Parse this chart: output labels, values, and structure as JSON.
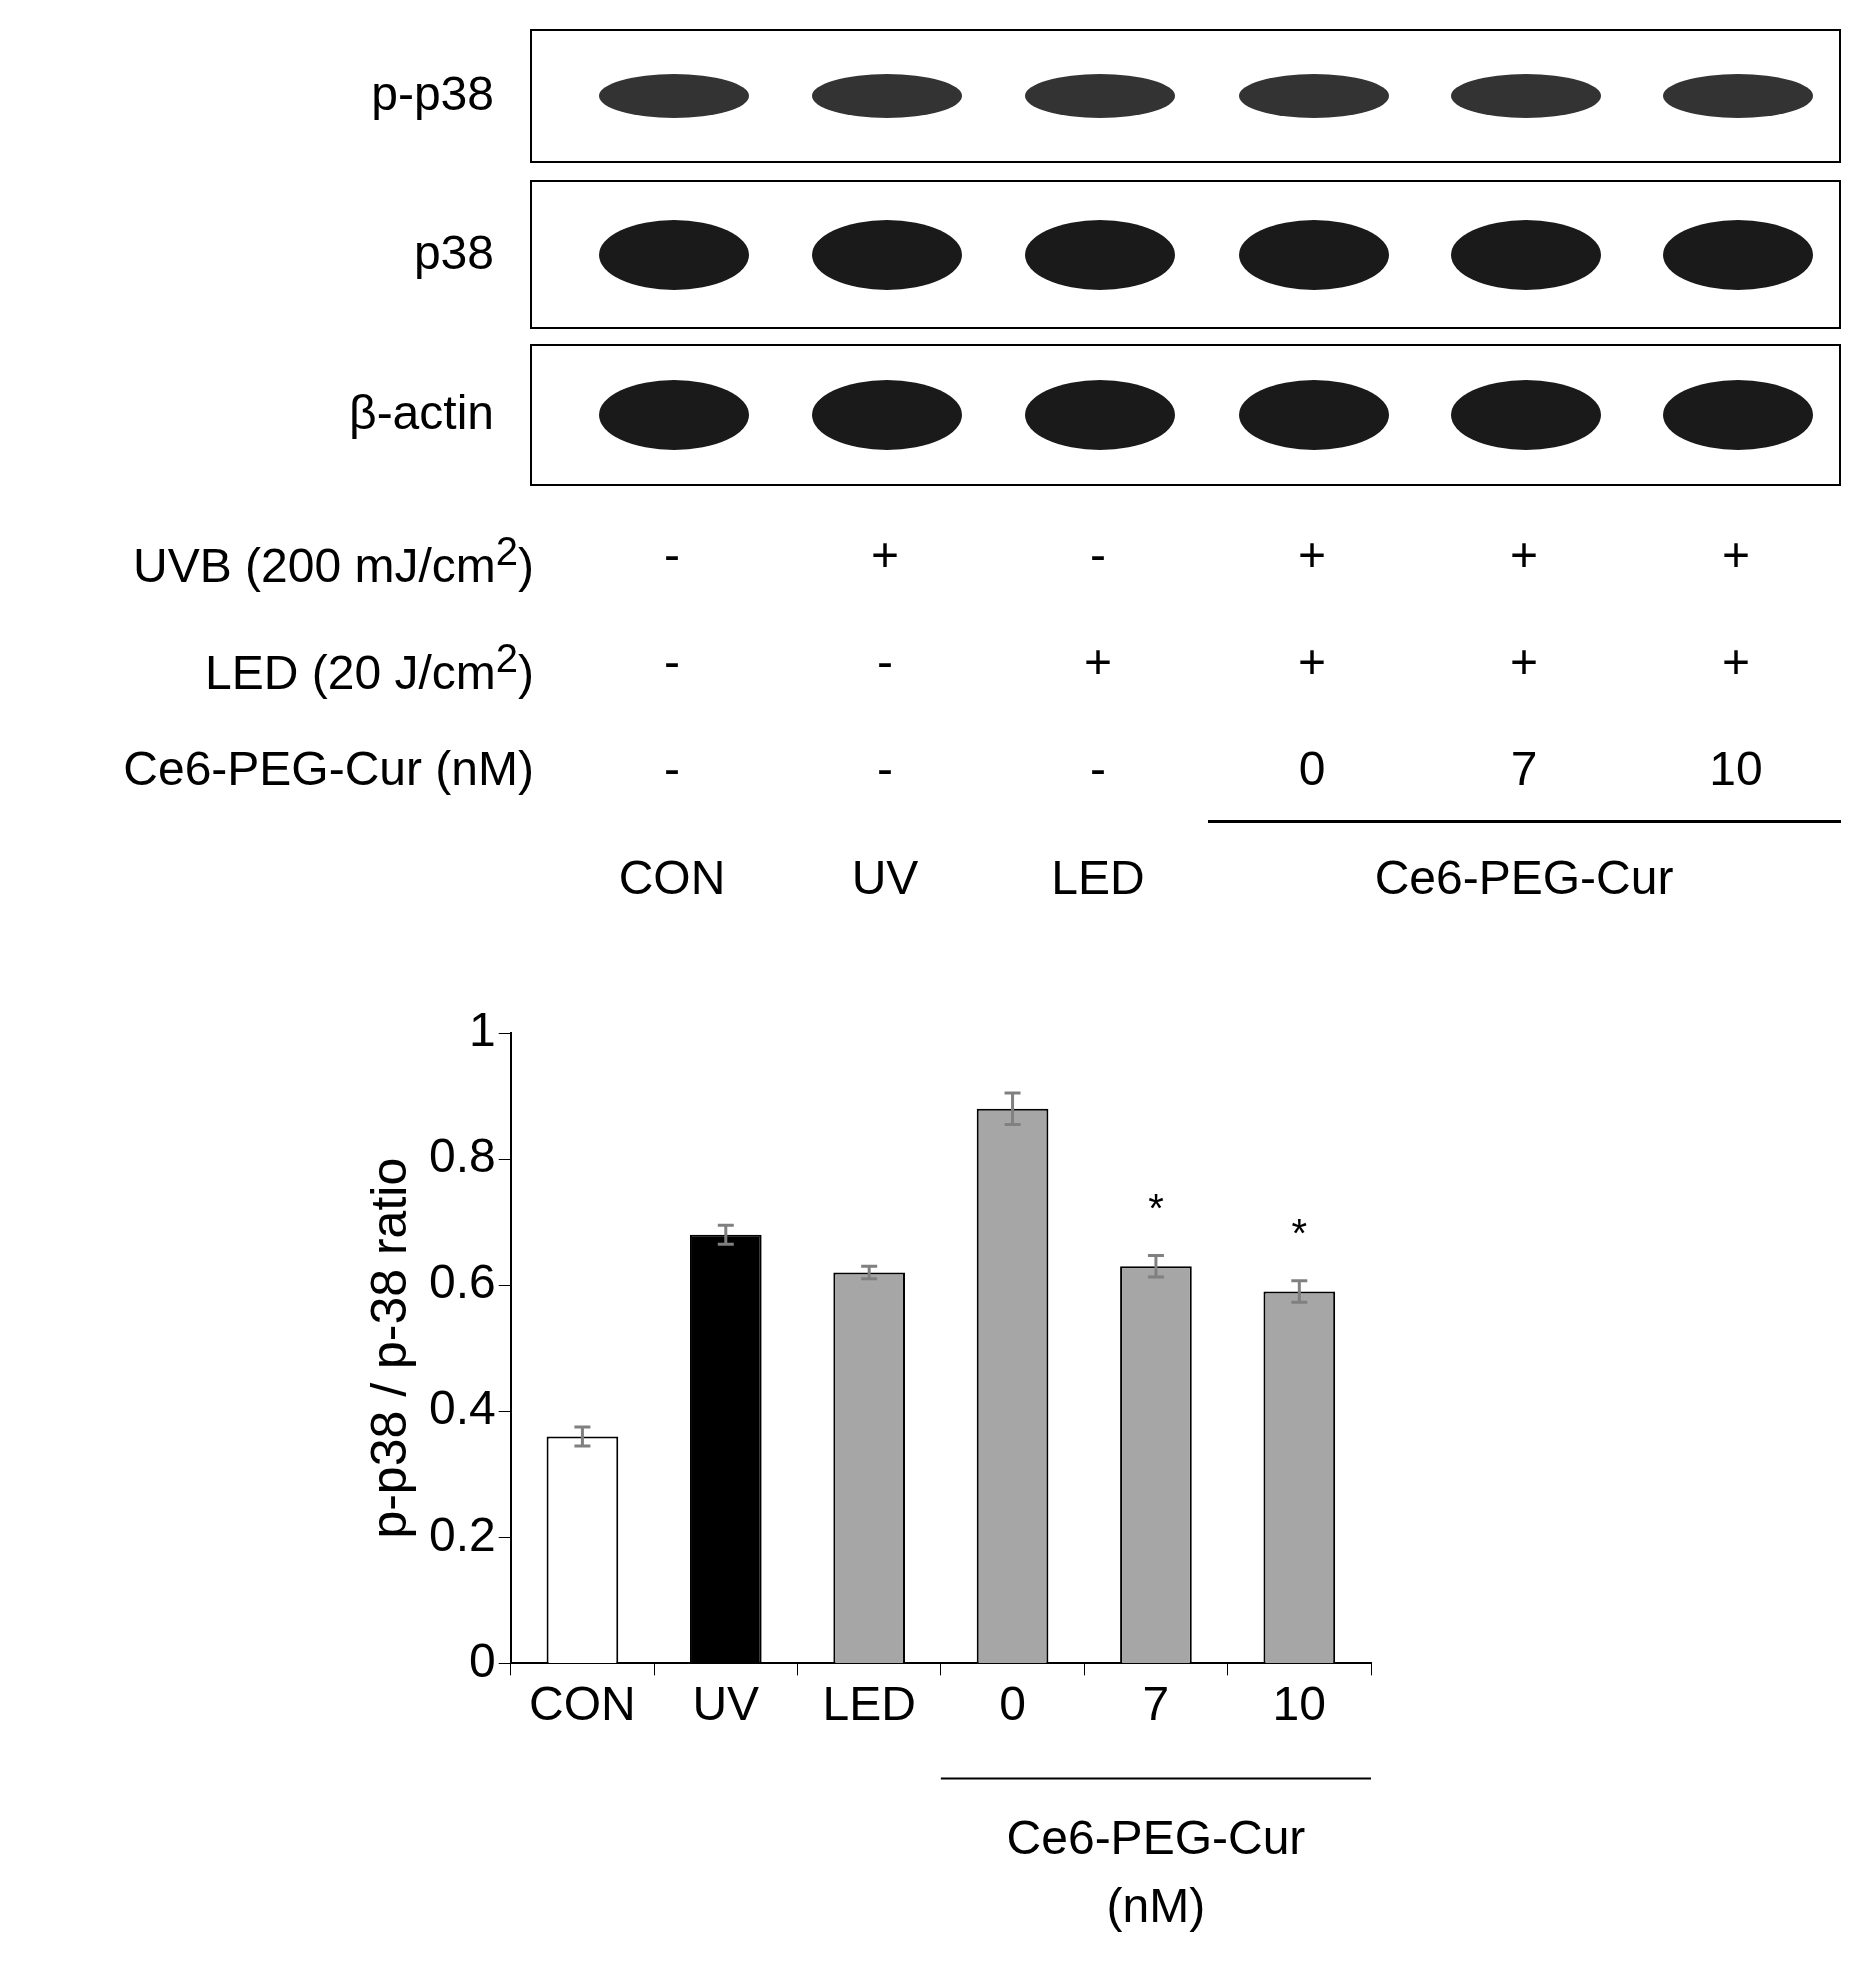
{
  "chart_data": {
    "type": "bar",
    "ylabel": "p-p38 / p-38 ratio",
    "xlabel": "Ce6-PEG-Cur (nM)",
    "categories": [
      "CON",
      "UV",
      "LED",
      "0",
      "7",
      "10"
    ],
    "values": [
      0.36,
      0.68,
      0.62,
      0.88,
      0.63,
      0.59
    ],
    "colors": [
      "#ffffff",
      "#000000",
      "#a6a6a6",
      "#a6a6a6",
      "#a6a6a6",
      "#a6a6a6"
    ],
    "errors": [
      0.015,
      0.015,
      0.01,
      0.025,
      0.017,
      0.017
    ],
    "ylim": [
      0,
      1
    ],
    "yticks": [
      0,
      0.2,
      0.4,
      0.6,
      0.8,
      1
    ],
    "legend": false,
    "annotations": [
      "p-p38",
      "p38",
      "β-actin",
      "UVB (200 mJ/cm$^{2}$)",
      "LED (20 J/cm$^{2}$)",
      "Ce6-PEG-Cur (nM)",
      "-",
      "+",
      "-",
      "+",
      "+",
      "+",
      "-",
      "-",
      "+",
      "+",
      "+",
      "+",
      "-",
      "-",
      "-",
      "0",
      "7",
      "10",
      "CON",
      "UV",
      "LED",
      "Ce6-PEG-Cur",
      "*",
      "*"
    ]
  }
}
